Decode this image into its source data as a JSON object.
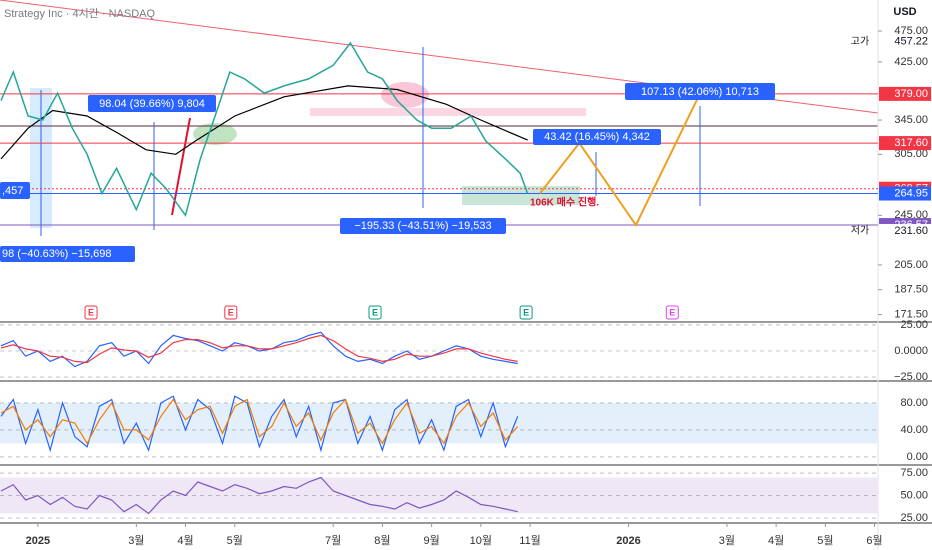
{
  "chart_data": {
    "type": "line",
    "title": "Strategy Inc · 4시간 · NASDAQ",
    "currency": "USD",
    "log_scale": true,
    "xlim": [
      0.23,
      18.07
    ],
    "xticks": [
      {
        "value": 1,
        "label": "2025"
      },
      {
        "value": 3,
        "label": "3월"
      },
      {
        "value": 4,
        "label": "4월"
      },
      {
        "value": 5,
        "label": "5월"
      },
      {
        "value": 7,
        "label": "7월"
      },
      {
        "value": 8,
        "label": "8월"
      },
      {
        "value": 9,
        "label": "9월"
      },
      {
        "value": 10,
        "label": "10월"
      },
      {
        "value": 11,
        "label": "11월"
      },
      {
        "value": 13,
        "label": "2026"
      },
      {
        "value": 15,
        "label": "3월"
      },
      {
        "value": 16,
        "label": "4월"
      },
      {
        "value": 17,
        "label": "5월"
      },
      {
        "value": 18,
        "label": "6월"
      }
    ],
    "ylim": [
      167,
      531
    ],
    "yticks": [
      {
        "value": 475,
        "label": "475.00"
      },
      {
        "value": 425,
        "label": "425.00"
      },
      {
        "value": 345,
        "label": "345.00"
      },
      {
        "value": 305,
        "label": "305.00"
      },
      {
        "value": 245,
        "label": "245.00"
      },
      {
        "value": 205,
        "label": "205.00"
      },
      {
        "value": 187.5,
        "label": "187.50"
      },
      {
        "value": 171.5,
        "label": "171.50"
      }
    ],
    "price": {
      "color": "#26a69a",
      "x": [
        0.25,
        0.5,
        0.8,
        1.1,
        1.4,
        1.7,
        2.0,
        2.3,
        2.6,
        3.0,
        3.3,
        3.6,
        4.0,
        4.3,
        4.6,
        4.9,
        5.2,
        5.6,
        6.0,
        6.5,
        7.0,
        7.35,
        7.7,
        8.0,
        8.3,
        8.7,
        9.0,
        9.4,
        9.8,
        10.1,
        10.5,
        10.8,
        10.95
      ],
      "values": [
        370,
        410,
        350,
        345,
        380,
        335,
        305,
        265,
        290,
        250,
        285,
        270,
        245,
        300,
        350,
        410,
        400,
        380,
        390,
        400,
        420,
        455,
        410,
        400,
        370,
        345,
        335,
        335,
        350,
        320,
        300,
        285,
        264.95
      ]
    },
    "moving_average": {
      "color": "#000000",
      "x": [
        0.25,
        0.8,
        1.3,
        2.0,
        2.6,
        3.2,
        3.8,
        4.2,
        5.0,
        6.0,
        7.3,
        8.3,
        9.3,
        10.0,
        10.95
      ],
      "values": [
        300,
        335,
        357,
        350,
        330,
        310,
        305,
        320,
        350,
        375,
        390,
        385,
        365,
        345,
        321
      ]
    },
    "projection": {
      "color": "#f0a020",
      "x": [
        11.2,
        12.0,
        13.15,
        14.45
      ],
      "values": [
        264.95,
        317.6,
        236.57,
        379
      ]
    },
    "levels": [
      {
        "value": 379,
        "label": "379.00",
        "color": "#f23645"
      },
      {
        "value": 317.6,
        "label": "317.60",
        "color": "#f23645"
      },
      {
        "value": 269.57,
        "label": "269.57",
        "color": "#f23645"
      },
      {
        "value": 264.95,
        "label": "264.95",
        "color": "#2962ff"
      },
      {
        "value": 236.57,
        "label": "236.57",
        "color": "#7e57c2"
      }
    ],
    "high": {
      "label": "고가",
      "value": 457.22
    },
    "low": {
      "label": "저가",
      "value": 231.6,
      "value_label": "231.60"
    },
    "annotations": [
      "98.04 (39.66%) 9,804",
      "−195.33 (−43.51%) −19,533",
      "43.42 (16.45%) 4,342",
      "107.13 (42.06%) 10,713",
      "106K 매수 진행.",
      "98 (−40.63%) −15,698",
      ",457"
    ],
    "earnings": {
      "label": "E",
      "x": [
        2.08,
        4.92,
        7.85,
        10.92,
        13.89
      ],
      "colors": [
        "#f23645",
        "#f23645",
        "#089981",
        "#089981",
        "#e040fb"
      ]
    },
    "indicator_x": [
      0.25,
      0.5,
      0.75,
      1,
      1.25,
      1.5,
      1.75,
      2,
      2.25,
      2.5,
      2.75,
      3,
      3.25,
      3.5,
      3.75,
      4,
      4.25,
      4.5,
      4.75,
      5,
      5.25,
      5.5,
      5.75,
      6,
      6.25,
      6.5,
      6.75,
      7,
      7.25,
      7.5,
      7.75,
      8,
      8.25,
      8.5,
      8.75,
      9,
      9.25,
      9.5,
      9.75,
      10,
      10.25,
      10.5,
      10.75
    ],
    "macd": {
      "ylim": [
        -28.8,
        26.9
      ],
      "yticks": [
        {
          "value": 25,
          "label": "25.00"
        },
        {
          "value": 0,
          "label": "0.0000"
        },
        {
          "value": -25,
          "label": "−25.00"
        }
      ],
      "series": [
        {
          "color": "#2962ff",
          "values": [
            5,
            10,
            -5,
            0,
            -10,
            -5,
            -15,
            -10,
            5,
            8,
            -5,
            0,
            -12,
            5,
            15,
            12,
            10,
            5,
            0,
            8,
            5,
            0,
            2,
            8,
            10,
            15,
            18,
            5,
            -5,
            -10,
            -8,
            -12,
            -5,
            0,
            -8,
            -5,
            0,
            5,
            2,
            -5,
            -8,
            -10,
            -12
          ]
        },
        {
          "color": "#f23645",
          "values": [
            3,
            6,
            2,
            0,
            -5,
            -6,
            -10,
            -11,
            -3,
            3,
            1,
            0,
            -6,
            -2,
            8,
            11,
            11,
            8,
            3,
            5,
            5,
            2,
            2,
            5,
            8,
            12,
            15,
            10,
            2,
            -5,
            -7,
            -10,
            -8,
            -3,
            -5,
            -5,
            -2,
            2,
            2,
            -2,
            -5,
            -8,
            -10
          ]
        }
      ]
    },
    "stoch": {
      "ylim": [
        -12,
        111
      ],
      "yticks": [
        {
          "value": 80,
          "label": "80.00"
        },
        {
          "value": 40,
          "label": "40.00"
        },
        {
          "value": 0,
          "label": "0.00"
        }
      ],
      "band": [
        20,
        80
      ],
      "band_color": "#e3f0fb",
      "series": [
        {
          "color": "#2962ff",
          "values": [
            60,
            85,
            20,
            70,
            10,
            80,
            30,
            15,
            75,
            85,
            20,
            50,
            10,
            80,
            90,
            40,
            85,
            70,
            20,
            90,
            80,
            15,
            60,
            85,
            30,
            75,
            10,
            80,
            85,
            20,
            60,
            10,
            70,
            85,
            20,
            55,
            10,
            75,
            85,
            30,
            80,
            15,
            60
          ]
        },
        {
          "color": "#f57c00",
          "values": [
            65,
            75,
            40,
            55,
            30,
            55,
            50,
            20,
            55,
            80,
            40,
            40,
            25,
            60,
            85,
            55,
            70,
            75,
            35,
            75,
            85,
            30,
            45,
            80,
            45,
            65,
            25,
            65,
            85,
            35,
            50,
            20,
            55,
            80,
            35,
            45,
            20,
            60,
            80,
            45,
            65,
            25,
            45
          ]
        }
      ]
    },
    "rsi": {
      "ylim": [
        20.6,
        82.8
      ],
      "yticks": [
        {
          "value": 75,
          "label": "75.00"
        },
        {
          "value": 50,
          "label": "50.00"
        },
        {
          "value": 25,
          "label": "25.00"
        }
      ],
      "band": [
        30,
        70
      ],
      "band_color": "#efe7f6",
      "series": [
        {
          "color": "#7e57c2",
          "values": [
            55,
            62,
            45,
            50,
            40,
            48,
            38,
            35,
            50,
            45,
            32,
            40,
            30,
            45,
            55,
            50,
            65,
            60,
            55,
            62,
            58,
            52,
            55,
            60,
            58,
            65,
            70,
            55,
            50,
            45,
            40,
            38,
            35,
            42,
            36,
            40,
            45,
            55,
            48,
            40,
            38,
            35,
            32
          ]
        }
      ]
    }
  }
}
